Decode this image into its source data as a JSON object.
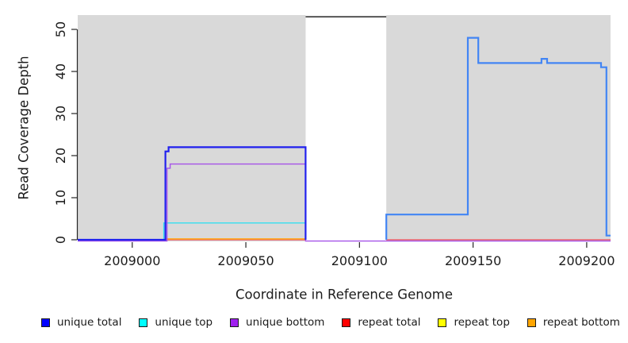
{
  "figure": {
    "xlabel": "Coordinate in Reference Genome",
    "ylabel": "Read Coverage Depth"
  },
  "chart_data": {
    "type": "line",
    "subtype": "step-coverage-plot",
    "title": "",
    "xlabel": "Coordinate in Reference Genome",
    "ylabel": "Read Coverage Depth",
    "x_ticks": [
      2009000,
      2009050,
      2009100,
      2009150,
      2009200
    ],
    "y_ticks": [
      0,
      10,
      20,
      30,
      40,
      50
    ],
    "x_domain": [
      2008976,
      2009210.5
    ],
    "y_domain": [
      -0.38,
      53.4
    ],
    "grid": false,
    "panel_bg": "#d9d9d9",
    "gap_region": {
      "start": 2009076.3,
      "end": 2009111.8,
      "color": "#ffffff"
    },
    "gap_top_marker": {
      "value": 53,
      "color": "#555555",
      "width": 2
    },
    "series": [
      {
        "name": "repeat total",
        "color": "#ee5f6b",
        "width": 1.4,
        "paths": [
          [
            [
              2008976,
              0
            ],
            [
              2009076.3,
              0
            ]
          ],
          [
            [
              2009111.8,
              0
            ],
            [
              2009210.5,
              0
            ]
          ]
        ]
      },
      {
        "name": "repeat top",
        "color": "#ffff00",
        "width": 1.4,
        "paths": []
      },
      {
        "name": "unique top",
        "color": "#35dfee",
        "width": 1.4,
        "paths": [
          [
            [
              2008976,
              0
            ],
            [
              2009013.9,
              0
            ],
            [
              2009013.9,
              4
            ],
            [
              2009076.3,
              4
            ],
            [
              2009076.3,
              0
            ]
          ]
        ]
      },
      {
        "name": "repeat bottom",
        "color": "#ffa519",
        "width": 1.6,
        "paths": [
          [
            [
              2009014.6,
              0.2
            ],
            [
              2009076.3,
              0.2
            ]
          ]
        ]
      },
      {
        "name": "unique bottom",
        "color": "#a653e8",
        "width": 1.4,
        "paths": [
          [
            [
              2008976,
              -0.3
            ],
            [
              2009015.3,
              -0.3
            ],
            [
              2009015.3,
              17
            ],
            [
              2009016.7,
              17
            ],
            [
              2009016.7,
              18
            ],
            [
              2009076.3,
              18
            ],
            [
              2009076.3,
              -0.3
            ],
            [
              2009210.5,
              -0.3
            ]
          ]
        ]
      },
      {
        "name": "unique total",
        "color": "#2121ee",
        "width": 2.2,
        "paths": [
          [
            [
              2008976,
              0
            ],
            [
              2009014.6,
              0
            ],
            [
              2009014.6,
              21
            ],
            [
              2009016,
              21
            ],
            [
              2009016,
              22
            ],
            [
              2009076.3,
              22
            ],
            [
              2009076.3,
              0
            ]
          ]
        ]
      },
      {
        "name": "unique total right of gap",
        "color": "#4285f4",
        "width": 2.2,
        "paths": [
          [
            [
              2009111.8,
              0
            ],
            [
              2009111.8,
              6
            ],
            [
              2009147.7,
              6
            ],
            [
              2009147.7,
              48
            ],
            [
              2009152.3,
              48
            ],
            [
              2009152.3,
              42
            ],
            [
              2009180.1,
              42
            ],
            [
              2009180.1,
              43
            ],
            [
              2009182.6,
              43
            ],
            [
              2009182.6,
              42
            ],
            [
              2009206.3,
              42
            ],
            [
              2009206.3,
              41
            ],
            [
              2009208.7,
              41
            ],
            [
              2009208.7,
              1
            ],
            [
              2009210.5,
              1
            ]
          ]
        ]
      }
    ],
    "legend_position": "bottom"
  },
  "legend": {
    "items": [
      {
        "label": "unique total",
        "color": "#0000ff"
      },
      {
        "label": "unique top",
        "color": "#00ffff"
      },
      {
        "label": "unique bottom",
        "color": "#a020f0"
      },
      {
        "label": "repeat total",
        "color": "#ff0000"
      },
      {
        "label": "repeat top",
        "color": "#ffff00"
      },
      {
        "label": "repeat bottom",
        "color": "#ffa500"
      }
    ]
  }
}
